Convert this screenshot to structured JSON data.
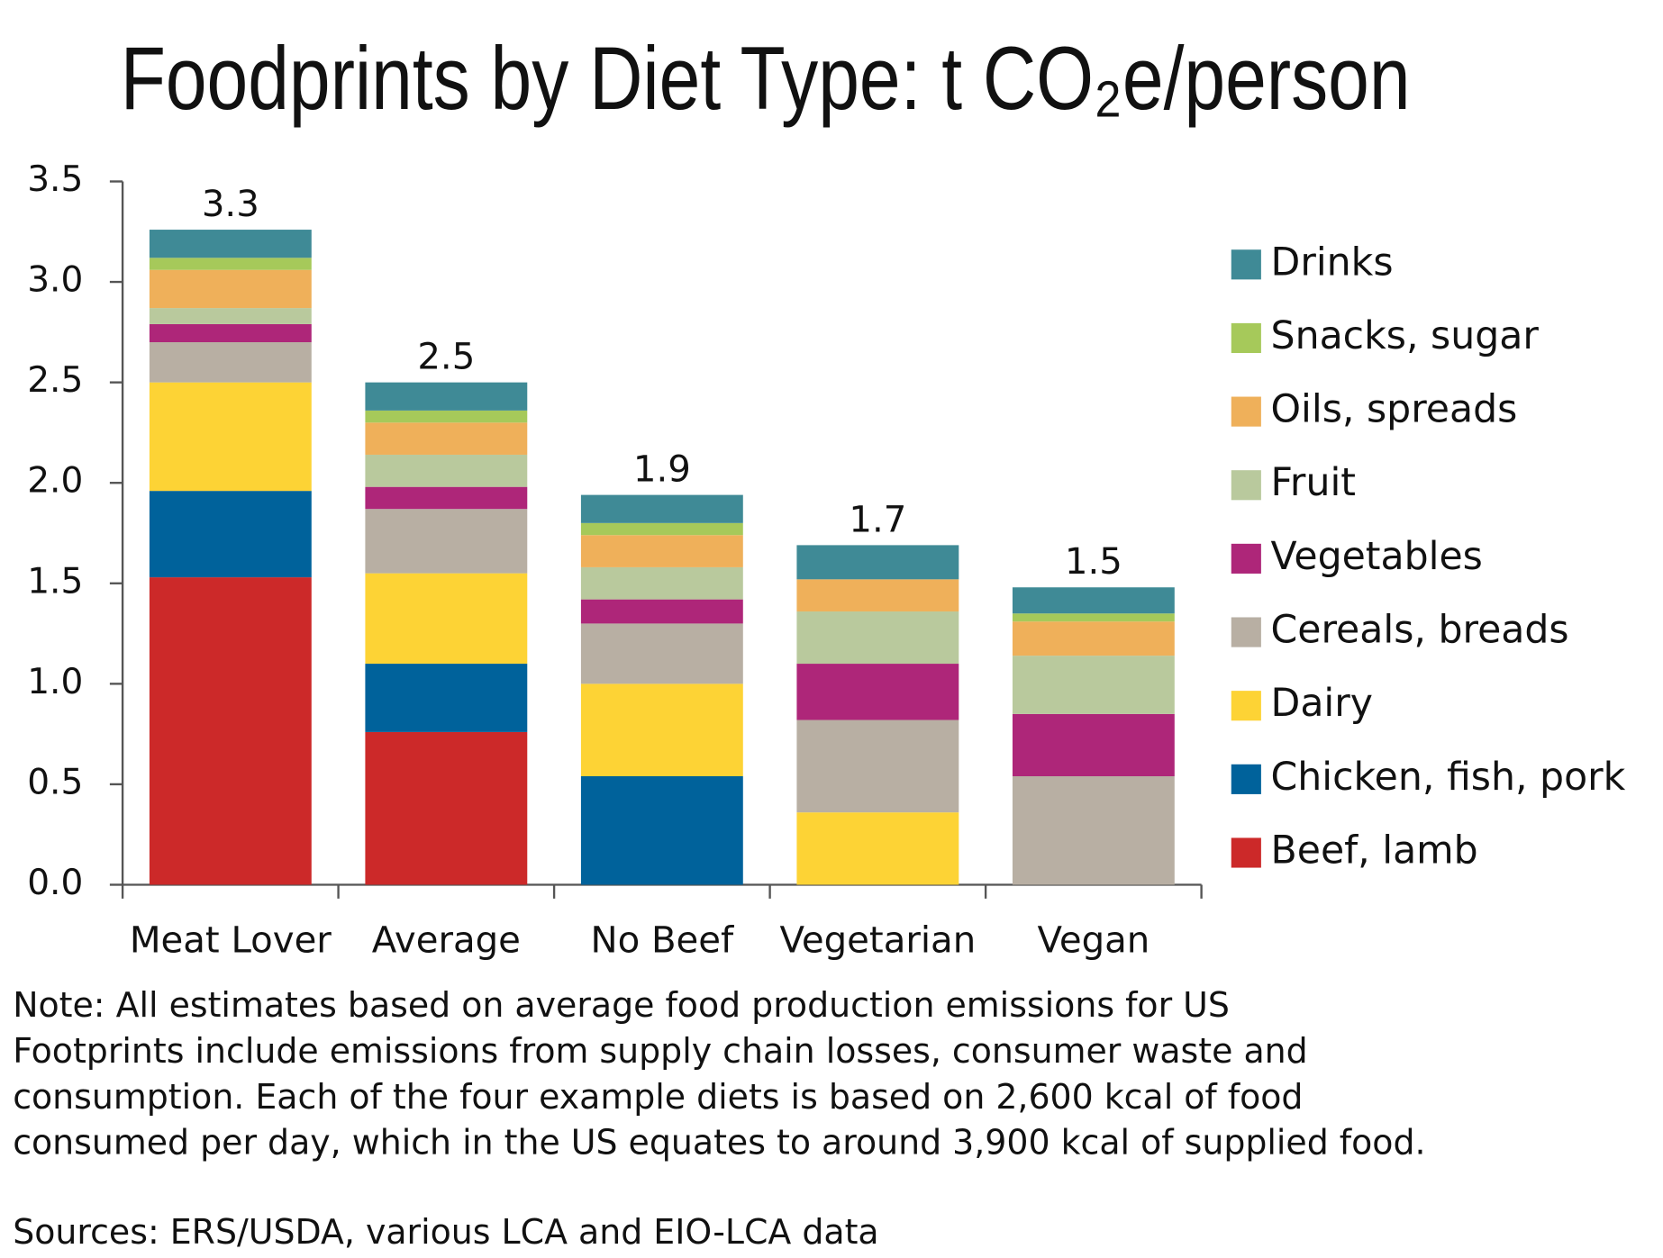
{
  "chart_data": {
    "type": "stacked_bar",
    "title": "Foodprints by Diet Type: t CO₂e/person",
    "categories": [
      "Meat Lover",
      "Average",
      "No Beef",
      "Vegetarian",
      "Vegan"
    ],
    "series": [
      {
        "name": "Beef, lamb",
        "color": "#cc2929",
        "values": [
          1.53,
          0.76,
          0,
          0,
          0
        ]
      },
      {
        "name": "Chicken, fish, pork",
        "color": "#00629b",
        "values": [
          0.43,
          0.34,
          0.54,
          0,
          0
        ]
      },
      {
        "name": "Dairy",
        "color": "#fdd335",
        "values": [
          0.54,
          0.45,
          0.46,
          0.36,
          0
        ]
      },
      {
        "name": "Cereals, breads",
        "color": "#b8afa3",
        "values": [
          0.2,
          0.32,
          0.3,
          0.46,
          0.54
        ]
      },
      {
        "name": "Vegetables",
        "color": "#ae2679",
        "values": [
          0.09,
          0.11,
          0.12,
          0.28,
          0.31
        ]
      },
      {
        "name": "Fruit",
        "color": "#b9c99d",
        "values": [
          0.08,
          0.16,
          0.16,
          0.26,
          0.29
        ]
      },
      {
        "name": "Oils, spreads",
        "color": "#efb05a",
        "values": [
          0.19,
          0.16,
          0.16,
          0.16,
          0.17
        ]
      },
      {
        "name": "Snacks, sugar",
        "color": "#a6c95a",
        "values": [
          0.06,
          0.06,
          0.06,
          0,
          0.04
        ]
      },
      {
        "name": "Drinks",
        "color": "#3f8a96",
        "values": [
          0.14,
          0.14,
          0.14,
          0.17,
          0.13
        ]
      }
    ],
    "totals": [
      3.3,
      2.5,
      1.9,
      1.7,
      1.5
    ],
    "ylim": [
      0,
      3.5
    ],
    "yticks": [
      {
        "value": 0,
        "label": "0.0"
      },
      0.5,
      {
        "value": 1,
        "label": "1.0"
      },
      1.5,
      {
        "value": 2,
        "label": "2.0"
      },
      2.5,
      {
        "value": 3,
        "label": "3.0"
      },
      3.5
    ],
    "grid": false,
    "legend": "right",
    "notes": [
      "Note: All estimates based on average food production emissions for US",
      "Footprints include emissions from supply chain losses, consumer waste and",
      "consumption. Each of the four example diets is based on 2,600 kcal of food",
      "consumed per day, which in the US equates to around 3,900 kcal of supplied food."
    ],
    "source": "Sources: ERS/USDA, various LCA and EIO-LCA data"
  }
}
